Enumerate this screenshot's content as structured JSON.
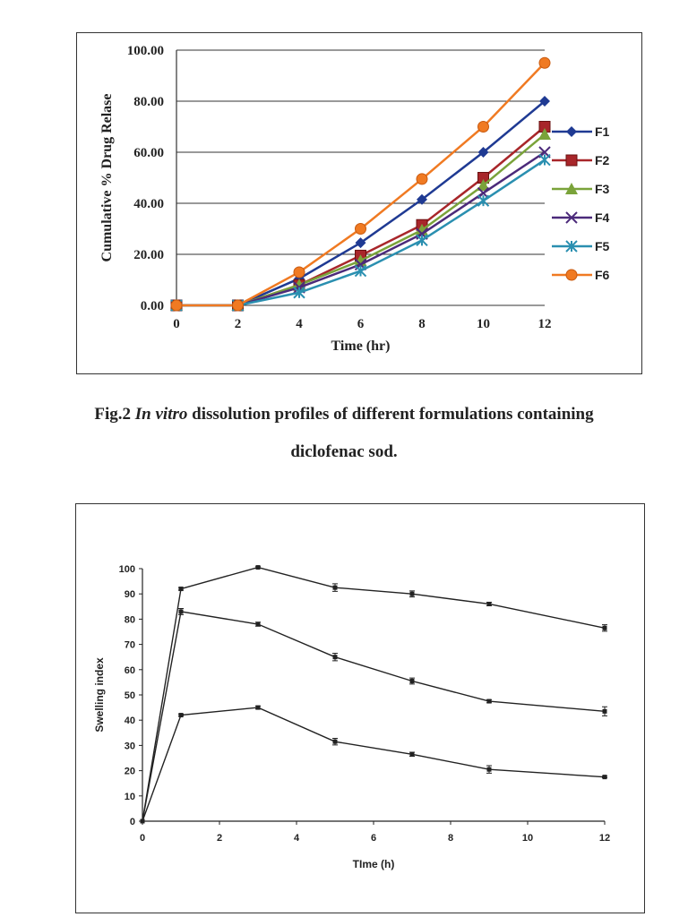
{
  "caption": {
    "prefix": "Fig.2 ",
    "italic": "In vitro",
    "rest": " dissolution profiles of different formulations containing",
    "line2": "diclofenac sod."
  },
  "chart_data": [
    {
      "type": "line",
      "title": "",
      "xlabel": "Time (hr)",
      "ylabel": "Cumulative % Drug Relase",
      "xlim": [
        0,
        12
      ],
      "ylim": [
        0,
        100
      ],
      "x": [
        0,
        2,
        4,
        6,
        8,
        10,
        12
      ],
      "x_ticks": [
        "0",
        "2",
        "4",
        "6",
        "8",
        "10",
        "12"
      ],
      "y_ticks": [
        "0.00",
        "20.00",
        "40.00",
        "60.00",
        "80.00",
        "100.00"
      ],
      "grid": "horizontal",
      "legend": "right",
      "series": [
        {
          "name": "F1",
          "color": "#1f3a93",
          "marker": "diamond",
          "values": [
            0,
            0,
            10.5,
            24.5,
            41.5,
            60,
            80
          ]
        },
        {
          "name": "F2",
          "color": "#a8262a",
          "marker": "square",
          "values": [
            0,
            0,
            8,
            19.5,
            31.5,
            50,
            70
          ]
        },
        {
          "name": "F3",
          "color": "#7aa33a",
          "marker": "triangle",
          "values": [
            0,
            0,
            8,
            17.5,
            29.5,
            47,
            67
          ]
        },
        {
          "name": "F4",
          "color": "#4b2a7a",
          "marker": "x",
          "values": [
            0,
            0,
            7,
            16,
            28,
            44,
            60
          ]
        },
        {
          "name": "F5",
          "color": "#2a8fb0",
          "marker": "star",
          "values": [
            0,
            0,
            5,
            13.5,
            25.5,
            41,
            57
          ]
        },
        {
          "name": "F6",
          "color": "#f07a22",
          "marker": "circle",
          "values": [
            0,
            0,
            13,
            30,
            49.5,
            70,
            95
          ]
        }
      ]
    },
    {
      "type": "line",
      "title": "",
      "xlabel": "TIme (h)",
      "ylabel": "Swelling index",
      "xlim": [
        0,
        12
      ],
      "ylim": [
        0,
        100
      ],
      "x": [
        0,
        1,
        3,
        5,
        7,
        9,
        12
      ],
      "x_ticks": [
        "0",
        "2",
        "4",
        "6",
        "8",
        "10",
        "12"
      ],
      "y_ticks": [
        "0",
        "10",
        "20",
        "30",
        "40",
        "50",
        "60",
        "70",
        "80",
        "90",
        "100"
      ],
      "grid": "none",
      "error_bars": true,
      "series": [
        {
          "color": "#222222",
          "values": [
            0,
            92,
            100.5,
            92.5,
            90,
            86,
            76.5
          ],
          "errors": [
            0,
            0.5,
            0.3,
            1.5,
            1.2,
            0.7,
            1.3
          ]
        },
        {
          "color": "#222222",
          "values": [
            0,
            83,
            78,
            65,
            55.5,
            47.5,
            43.5
          ],
          "errors": [
            0,
            1.2,
            0.8,
            1.5,
            1.2,
            0.6,
            1.8
          ]
        },
        {
          "color": "#222222",
          "values": [
            0,
            42,
            45,
            31.5,
            26.5,
            20.5,
            17.5
          ],
          "errors": [
            0,
            0.4,
            0.6,
            1.3,
            0.8,
            1.5,
            0.3
          ]
        }
      ]
    }
  ]
}
